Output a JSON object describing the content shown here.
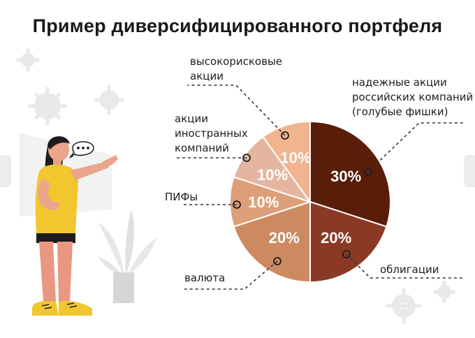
{
  "title": "Пример диверсифицированного портфеля",
  "speech_bubble": "•••",
  "chart_data": {
    "type": "pie",
    "title": "Пример диверсифицированного портфеля",
    "slices": [
      {
        "label": "надежные акции российских компаний (голубые фишки)",
        "value": 30,
        "value_label": "30%",
        "color": "#5a1d0a"
      },
      {
        "label": "облигации",
        "value": 20,
        "value_label": "20%",
        "color": "#8a3a24"
      },
      {
        "label": "валюта",
        "value": 20,
        "value_label": "20%",
        "color": "#cd8a60"
      },
      {
        "label": "ПИФы",
        "value": 10,
        "value_label": "10%",
        "color": "#dd9f79"
      },
      {
        "label": "акции иностранных компаний",
        "value": 10,
        "value_label": "10%",
        "color": "#e4b6a0"
      },
      {
        "label": "высокорисковые акции",
        "value": 10,
        "value_label": "10%",
        "color": "#f0b48e"
      }
    ]
  },
  "labels": {
    "blue_chips": [
      "надежные акции",
      "российских компаний",
      "(голубые фишки)"
    ],
    "bonds": [
      "облигации"
    ],
    "currency": [
      "валюта"
    ],
    "funds": [
      "ПИФы"
    ],
    "foreign": [
      "акции",
      "иностранных",
      "компаний"
    ],
    "high_risk": [
      "высокорисковые",
      "акции"
    ]
  },
  "icons": [
    "gear-icon",
    "woman-illustration-icon",
    "plant-icon",
    "arrow-left-icon",
    "arrow-right-icon"
  ]
}
